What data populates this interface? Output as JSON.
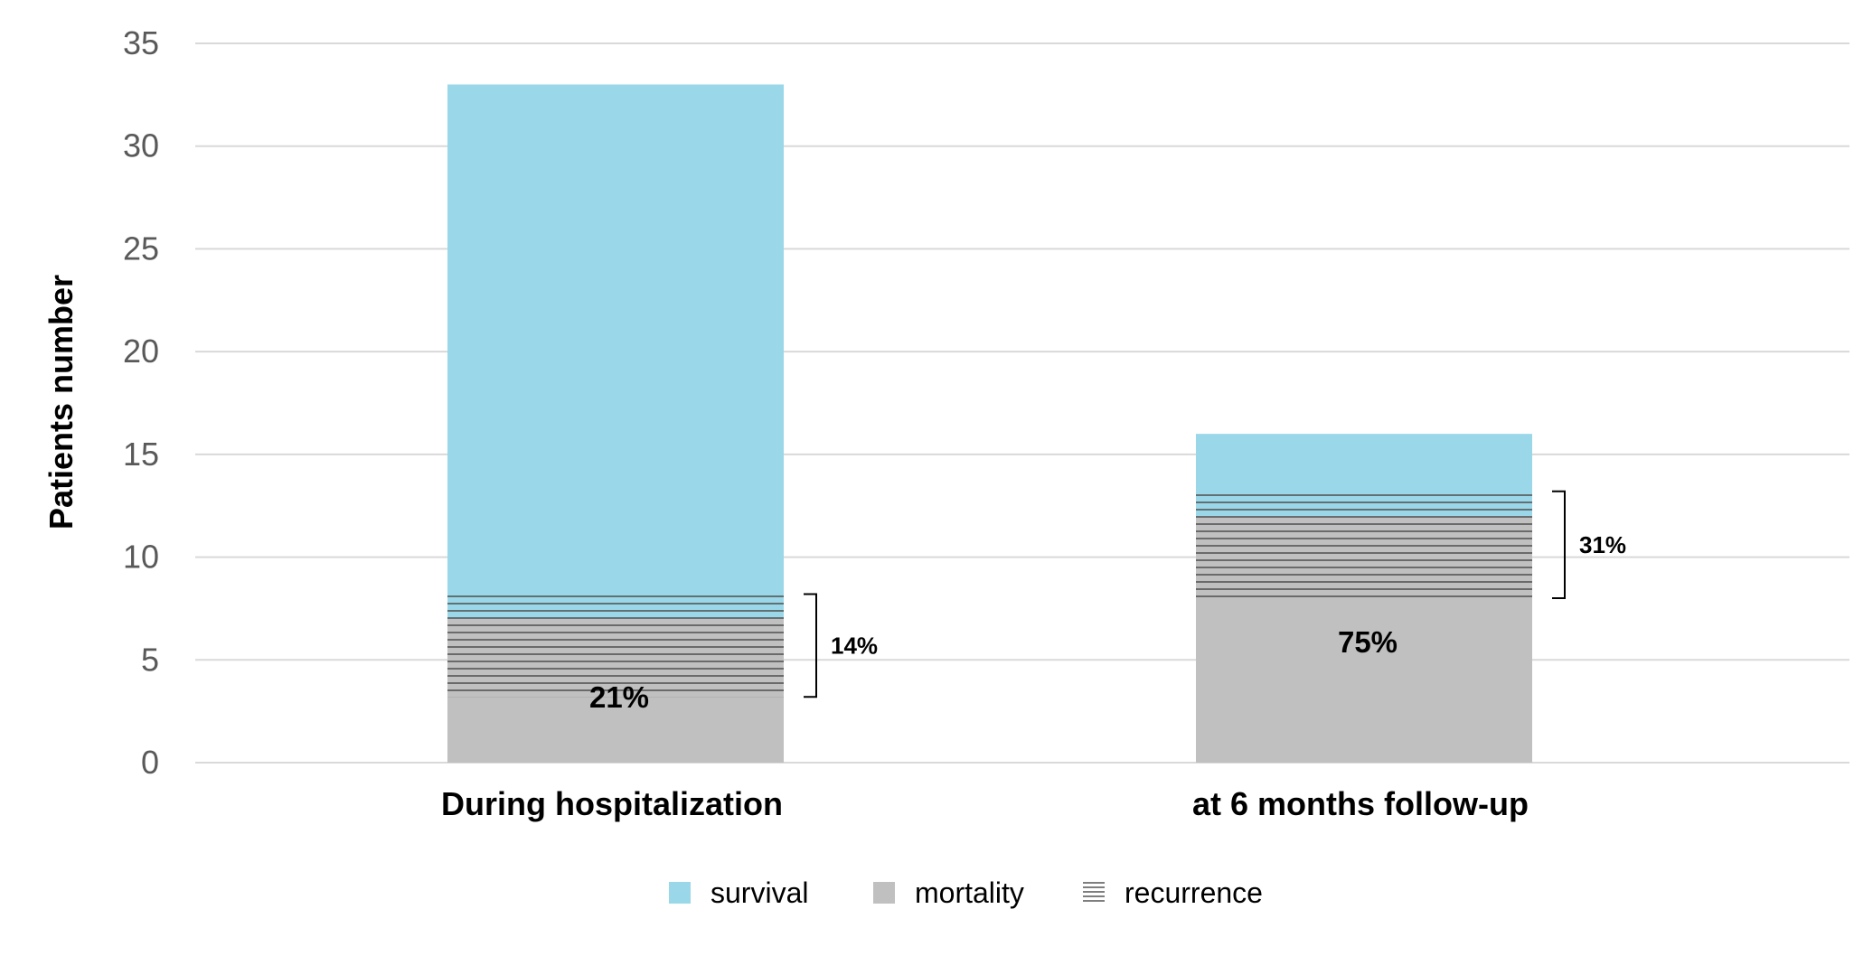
{
  "chart_data": {
    "type": "bar",
    "stacked": true,
    "categories": [
      "During hospitalization",
      "at 6 months follow-up"
    ],
    "series": [
      {
        "name": "mortality",
        "values": [
          7,
          12
        ],
        "color": "#c0c0c0",
        "pattern": "none"
      },
      {
        "name": "survival",
        "values": [
          26,
          4
        ],
        "color": "#9ad8e9",
        "pattern": "none"
      }
    ],
    "recurrence": [
      {
        "category": "During hospitalization",
        "from": 3.2,
        "to": 8.2
      },
      {
        "category": "at 6 months follow-up",
        "from": 8,
        "to": 13.2
      }
    ],
    "legend_entries": [
      {
        "name": "survival",
        "color": "#9ad8e9",
        "pattern": "solid"
      },
      {
        "name": "mortality",
        "color": "#c0c0c0",
        "pattern": "solid"
      },
      {
        "name": "recurrence",
        "color": "#ffffff",
        "pattern": "horizontal-lines"
      }
    ],
    "annotations": [
      {
        "category": "During hospitalization",
        "text": "21%",
        "kind": "mortality-pct",
        "at": 3.2
      },
      {
        "category": "During hospitalization",
        "text": "14%",
        "kind": "recurrence-bracket",
        "from": 3.2,
        "to": 8.2
      },
      {
        "category": "at 6 months follow-up",
        "text": "75%",
        "kind": "mortality-pct",
        "at": 5.9
      },
      {
        "category": "at 6 months follow-up",
        "text": "31%",
        "kind": "recurrence-bracket",
        "from": 8,
        "to": 13.2
      }
    ],
    "ylabel": "Patients number",
    "xlabel": "",
    "title": "",
    "ylim": [
      0,
      35
    ],
    "yticks": [
      0,
      5,
      10,
      15,
      20,
      25,
      30,
      35
    ],
    "grid": true,
    "legend_position": "bottom"
  }
}
